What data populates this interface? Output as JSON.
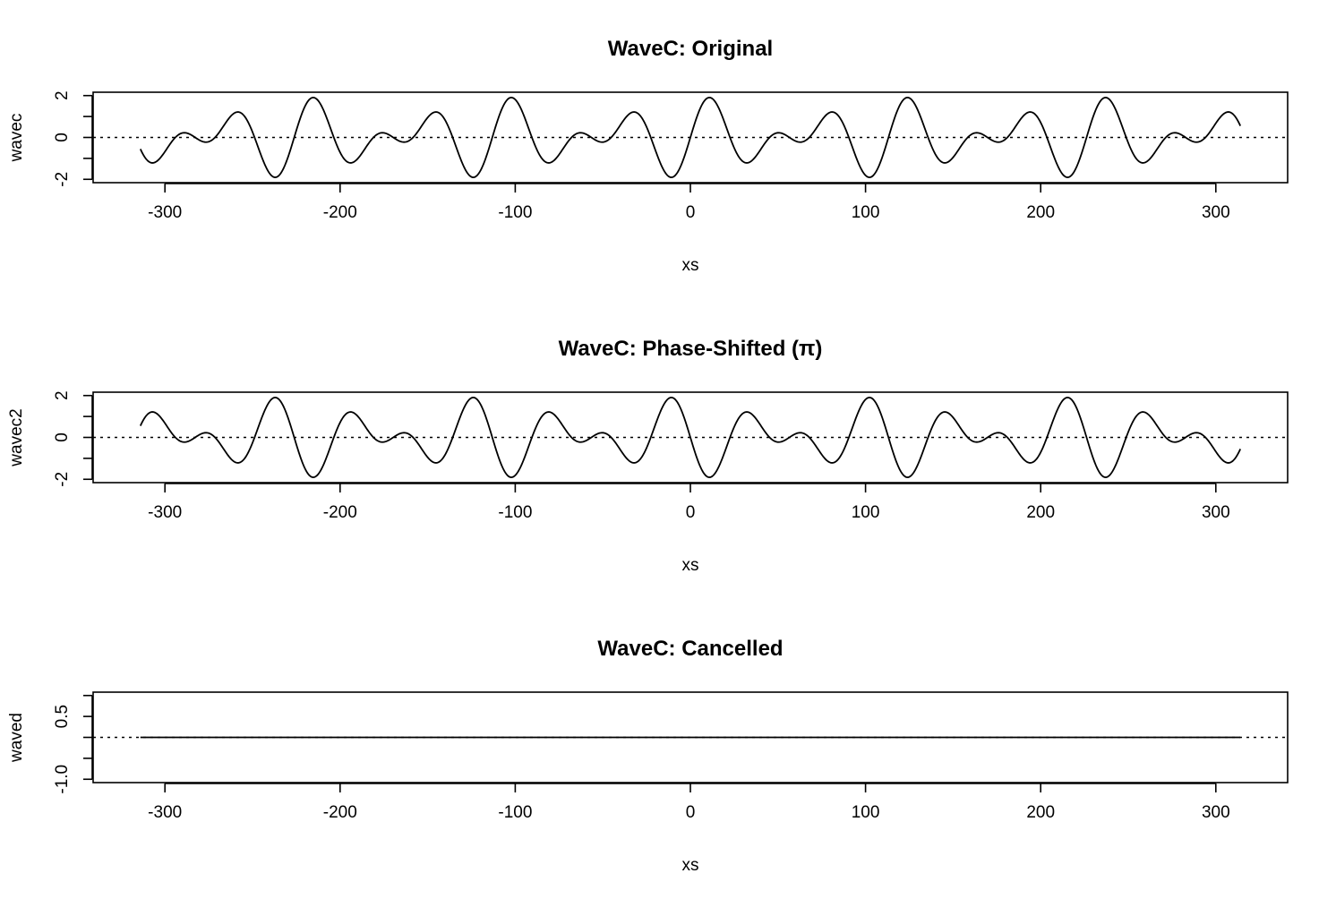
{
  "figure": {
    "background": "#ffffff",
    "line_color": "#000000"
  },
  "chart_data": [
    {
      "type": "line",
      "title": "WaveC: Original",
      "xlabel": "xs",
      "ylabel": "wavec",
      "xlim": [
        -314,
        314
      ],
      "ylim": [
        -2,
        2
      ],
      "xticks": [
        -300,
        -200,
        -100,
        0,
        100,
        200,
        300
      ],
      "xtick_labels": [
        "-300",
        "-200",
        "-100",
        "0",
        "100",
        "200",
        "300"
      ],
      "yticks": [
        -2,
        -1,
        0,
        1,
        2
      ],
      "ytick_labels": [
        "-2",
        "",
        "0",
        "",
        "2"
      ],
      "reference_line": {
        "y": 0,
        "style": "dotted"
      },
      "series": [
        {
          "function": "sin(x/6) + sin(x/9)",
          "x_start": -314,
          "x_end": 314,
          "phase": 0
        }
      ],
      "grid": false,
      "legend": "none"
    },
    {
      "type": "line",
      "title": "WaveC: Phase-Shifted (π)",
      "xlabel": "xs",
      "ylabel": "wavec2",
      "xlim": [
        -314,
        314
      ],
      "ylim": [
        -2,
        2
      ],
      "xticks": [
        -300,
        -200,
        -100,
        0,
        100,
        200,
        300
      ],
      "xtick_labels": [
        "-300",
        "-200",
        "-100",
        "0",
        "100",
        "200",
        "300"
      ],
      "yticks": [
        -2,
        -1,
        0,
        1,
        2
      ],
      "ytick_labels": [
        "-2",
        "",
        "0",
        "",
        "2"
      ],
      "reference_line": {
        "y": 0,
        "style": "dotted"
      },
      "series": [
        {
          "function": "sin(x/6 + π) + sin(x/9 + π)",
          "x_start": -314,
          "x_end": 314,
          "phase": 3.14159265
        }
      ],
      "grid": false,
      "legend": "none"
    },
    {
      "type": "line",
      "title": "WaveC: Cancelled",
      "xlabel": "xs",
      "ylabel": "waved",
      "xlim": [
        -314,
        314
      ],
      "ylim": [
        -1.0,
        1.0
      ],
      "xticks": [
        -300,
        -200,
        -100,
        0,
        100,
        200,
        300
      ],
      "xtick_labels": [
        "-300",
        "-200",
        "-100",
        "0",
        "100",
        "200",
        "300"
      ],
      "yticks": [
        -1.0,
        -0.5,
        0,
        0.5,
        1.0
      ],
      "ytick_labels": [
        "-1.0",
        "",
        "",
        "0.5",
        ""
      ],
      "reference_line": {
        "y": 0,
        "style": "dotted"
      },
      "series": [
        {
          "function": "wavec + wavec2 = 0",
          "x_start": -314,
          "x_end": 314,
          "constant": 0
        }
      ],
      "grid": false,
      "legend": "none"
    }
  ]
}
